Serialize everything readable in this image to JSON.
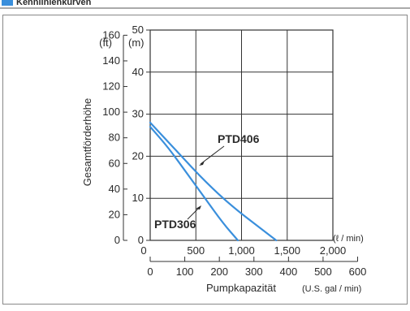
{
  "header": {
    "title_visible": "Kennlinienkurven"
  },
  "chart_data": {
    "type": "line",
    "ylabel": "Gesamtförderhöhe",
    "xlabel": "Pumpkapazität",
    "xlabel_unit": "(U.S. gal / min)",
    "x_unit_top": "(ℓ / min)",
    "y_unit_left": "(ft)",
    "y_unit_right": "(m)",
    "x_lpm_ticks": [
      {
        "value": 0,
        "label": "0"
      },
      {
        "value": 500,
        "label": "500"
      },
      {
        "value": 1000,
        "label": "1,000"
      },
      {
        "value": 1500,
        "label": "1,500"
      },
      {
        "value": 2000,
        "label": "2,000"
      }
    ],
    "x_gpm_ticks": [
      {
        "value": 0,
        "label": "0"
      },
      {
        "value": 100,
        "label": "100"
      },
      {
        "value": 200,
        "label": "200"
      },
      {
        "value": 300,
        "label": "300"
      },
      {
        "value": 400,
        "label": "400"
      },
      {
        "value": 500,
        "label": "500"
      },
      {
        "value": 600,
        "label": "600"
      }
    ],
    "y_m_ticks": [
      {
        "value": 0,
        "label": "0"
      },
      {
        "value": 10,
        "label": "10"
      },
      {
        "value": 20,
        "label": "20"
      },
      {
        "value": 30,
        "label": "30"
      },
      {
        "value": 40,
        "label": "40"
      },
      {
        "value": 50,
        "label": "50"
      }
    ],
    "y_ft_ticks": [
      {
        "value": 0,
        "label": "0"
      },
      {
        "value": 20,
        "label": "20"
      },
      {
        "value": 40,
        "label": "40"
      },
      {
        "value": 60,
        "label": "60"
      },
      {
        "value": 80,
        "label": "80"
      },
      {
        "value": 100,
        "label": "100"
      },
      {
        "value": 120,
        "label": "120"
      },
      {
        "value": 140,
        "label": "140"
      },
      {
        "value": 160,
        "label": "160"
      }
    ],
    "xlim": [
      0,
      2000
    ],
    "ylim": [
      0,
      50
    ],
    "grid": true,
    "series": [
      {
        "name": "PTD306",
        "x": [
          0,
          200,
          400,
          600,
          800,
          960
        ],
        "y": [
          27,
          22,
          16,
          10,
          4,
          0
        ]
      },
      {
        "name": "PTD406",
        "x": [
          0,
          300,
          600,
          900,
          1200,
          1380
        ],
        "y": [
          28,
          21,
          14,
          8,
          3,
          0
        ]
      }
    ],
    "curve_color": "#3a8fdc"
  }
}
